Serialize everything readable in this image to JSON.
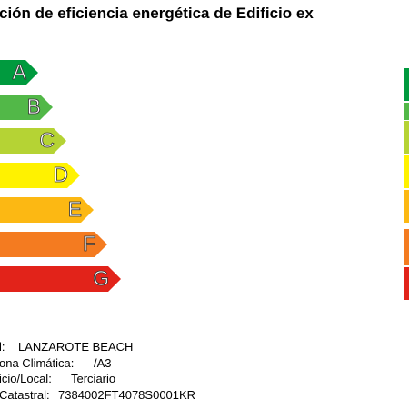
{
  "header": {
    "title": "ción de eficiencia energética de Edificio ex"
  },
  "ratings": [
    "A",
    "B",
    "C",
    "D",
    "E",
    "F",
    "G"
  ],
  "info": [
    {
      "label": "l:",
      "value": "LANZAROTE BEACH"
    },
    {
      "label": "ona Climática:",
      "value": "/A3"
    },
    {
      "label": "icio/Local:",
      "value": "Terciario"
    },
    {
      "label": "Catastral:",
      "value": "7384002FT4078S0001KR"
    }
  ]
}
